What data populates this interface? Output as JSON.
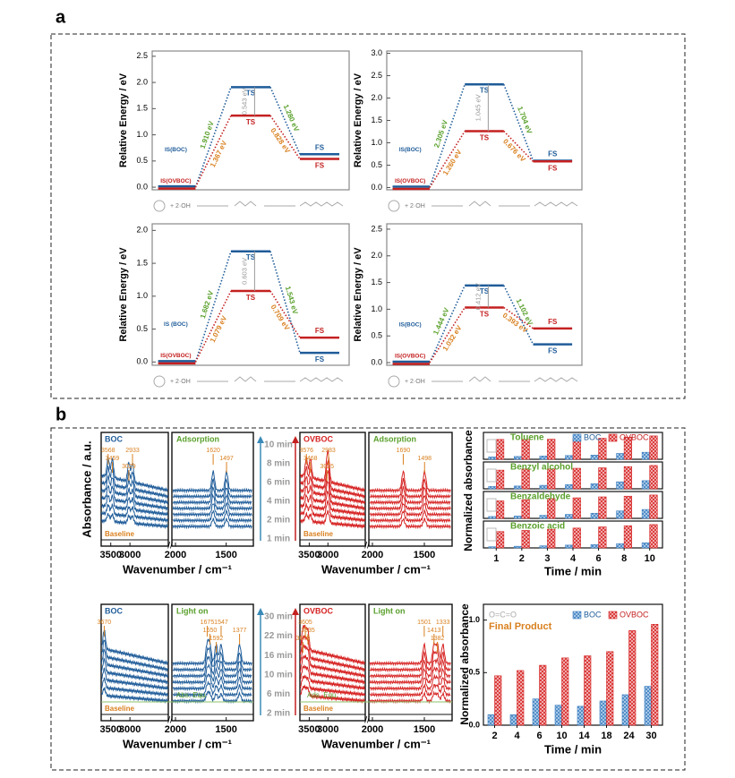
{
  "panel_labels": [
    "a",
    "b"
  ],
  "energy_diagrams": [
    {
      "ylabel": "Relative Energy / eV",
      "ylim": [
        -0.05,
        2.6
      ],
      "yticks": [
        {
          "value": 0,
          "label": "0.0"
        },
        0.5,
        {
          "value": 1,
          "label": "1.0"
        },
        1.5,
        {
          "value": 2,
          "label": "2.0"
        },
        2.5
      ],
      "levels": {
        "is": 0,
        "ts_boc": 1.91,
        "fs_boc": 0.63,
        "ts_ovboc": 1.367,
        "fs_ovboc": 0.539
      },
      "is_boc_label": "IS(BOC)",
      "is_ovboc_label": "IS(OVBOC)",
      "ts_label": "TS",
      "fs_label": "FS",
      "boc_up": "1.910 eV",
      "boc_down": "1.280 eV",
      "ovboc_up": "1.367 eV",
      "ovboc_down": "0.828 eV",
      "diff": "0.543 eV",
      "reagent": "+ 2·OH"
    },
    {
      "ylabel": "Relative Energy / eV",
      "ylim": [
        -0.05,
        3.05
      ],
      "yticks": [
        {
          "value": 0,
          "label": "0.0"
        },
        0.5,
        {
          "value": 1,
          "label": "1.0"
        },
        1.5,
        {
          "value": 2,
          "label": "2.0"
        },
        2.5,
        {
          "value": 3,
          "label": "3.0"
        }
      ],
      "levels": {
        "is": 0,
        "ts_boc": 2.305,
        "fs_boc": 0.601,
        "ts_ovboc": 1.26,
        "fs_ovboc": 0.584
      },
      "is_boc_label": "IS(BOC)",
      "is_ovboc_label": "IS(OVBOC)",
      "ts_label": "TS",
      "fs_label": "FS",
      "boc_up": "2.305 eV",
      "boc_down": "1.704 eV",
      "ovboc_up": "1.260 eV",
      "ovboc_down": "0.676 eV",
      "diff": "1.045 eV",
      "reagent": "+ 2·OH"
    },
    {
      "ylabel": "Relative Energy / eV",
      "ylim": [
        -0.05,
        2.1
      ],
      "yticks": [
        {
          "value": 0,
          "label": "0.0"
        },
        0.5,
        {
          "value": 1,
          "label": "1.0"
        },
        1.5,
        {
          "value": 2,
          "label": "2.0"
        }
      ],
      "levels": {
        "is": 0,
        "ts_boc": 1.682,
        "fs_boc": 0.139,
        "ts_ovboc": 1.079,
        "fs_ovboc": 0.37
      },
      "is_boc_label": "IS (BOC)",
      "is_ovboc_label": "IS(OVBOC)",
      "ts_label": "TS",
      "fs_label": "FS",
      "boc_up": "1.682 eV",
      "boc_down": "1.543 eV",
      "ovboc_up": "1.079 eV",
      "ovboc_down": "0.709 eV",
      "diff": "0.603 eV",
      "reagent": "+ 2·OH"
    },
    {
      "ylabel": "Relative Energy / eV",
      "ylim": [
        -0.05,
        2.6
      ],
      "yticks": [
        {
          "value": 0,
          "label": "0.0"
        },
        0.5,
        {
          "value": 1,
          "label": "1.0"
        },
        1.5,
        {
          "value": 2,
          "label": "2.0"
        },
        2.5
      ],
      "levels": {
        "is": 0,
        "ts_boc": 1.444,
        "fs_boc": 0.342,
        "ts_ovboc": 1.032,
        "fs_ovboc": 0.639
      },
      "is_boc_label": "IS(BOC)",
      "is_ovboc_label": "IS(OVBOC)",
      "ts_label": "TS",
      "fs_label": "FS",
      "boc_up": "1.444 eV",
      "boc_down": "1.102 eV",
      "ovboc_up": "1.032 eV",
      "ovboc_down": "0.393 eV",
      "diff": "0.412 eV",
      "reagent": "+ 2·OH"
    }
  ],
  "spectra_axes": {
    "ylabel": "Absorbance / a.u.",
    "xlabel": "Wavenumber / cm⁻¹",
    "xlim_left": [
      3750,
      2000
    ],
    "xlim_right": [
      2000,
      1250
    ],
    "xticks": [
      3500,
      3000,
      2000,
      1500
    ],
    "baseline": "Baseline"
  },
  "times_adsorption": [
    "10 min",
    "8 min",
    "6 min",
    "4 min",
    "2 min",
    "1 min"
  ],
  "times_light": [
    "30 min",
    "22 min",
    "16 min",
    "10 min",
    "6 min",
    "2 min"
  ],
  "spectra": [
    {
      "sample": "BOC",
      "mode": "Adsorption",
      "color": "#1f5c99",
      "peaks_left": [
        3568,
        3459,
        3029,
        2933
      ],
      "peaks_right": [
        1620,
        1497
      ]
    },
    {
      "sample": "OVBOC",
      "mode": "Adsorption",
      "color": "#d62222",
      "peaks_left": [
        3576,
        3468,
        3025,
        2983
      ],
      "peaks_right": [
        1690,
        1498
      ]
    },
    {
      "sample": "BOC",
      "mode": "Light on",
      "color": "#1f5c99",
      "equ": "Abs. Equ.",
      "peaks_left": [
        3670
      ],
      "peaks_right": [
        1675,
        1650,
        1592,
        1547,
        1377
      ]
    },
    {
      "sample": "OVBOC",
      "mode": "Light on",
      "color": "#d62222",
      "equ": "Ads. Equ.",
      "peaks_left": [
        3605,
        3535,
        3670
      ],
      "peaks_right": [
        1501,
        1413,
        1382,
        1333
      ]
    }
  ],
  "bar_top": {
    "type": "bar",
    "ylabel": "Normalized absorbance",
    "xlabel": "Time / min",
    "ylim": [
      0,
      1.15
    ],
    "categories": [
      "1",
      "2",
      "3",
      "4",
      "6",
      "8",
      "10"
    ],
    "subplots": [
      {
        "title": "Toluene",
        "series": [
          {
            "name": "BOC",
            "color": "#3d7fc0",
            "values": [
              0.1,
              0.12,
              0.14,
              0.16,
              0.18,
              0.25,
              0.3
            ]
          },
          {
            "name": "OVBOC",
            "color": "#d62222",
            "values": [
              0.85,
              0.85,
              0.86,
              0.9,
              0.9,
              0.95,
              1.0
            ]
          }
        ]
      },
      {
        "title": "Benzyl alcohol",
        "series": [
          {
            "color": "#3d7fc0",
            "values": [
              0.1,
              0.12,
              0.15,
              0.18,
              0.22,
              0.3,
              0.35
            ]
          },
          {
            "color": "#d62222",
            "values": [
              0.8,
              0.85,
              0.85,
              0.88,
              0.9,
              0.95,
              1.0
            ]
          }
        ]
      },
      {
        "title": "Benzaldehyde",
        "series": [
          {
            "color": "#3d7fc0",
            "values": [
              0.08,
              0.1,
              0.13,
              0.17,
              0.22,
              0.32,
              0.38
            ]
          },
          {
            "color": "#d62222",
            "values": [
              0.75,
              0.8,
              0.85,
              0.88,
              0.92,
              0.95,
              1.0
            ]
          }
        ]
      },
      {
        "title": "Benzoic acid",
        "series": [
          {
            "color": "#3d7fc0",
            "values": [
              0.05,
              0.07,
              0.09,
              0.12,
              0.14,
              0.18,
              0.22
            ]
          },
          {
            "color": "#d62222",
            "values": [
              0.7,
              0.75,
              0.8,
              0.85,
              0.9,
              0.95,
              1.0
            ]
          }
        ]
      }
    ]
  },
  "bar_bottom": {
    "type": "bar",
    "title": "Final Product",
    "molecule": "O=C=O",
    "ylabel": "Normalized absorbance",
    "xlabel": "Time / min",
    "ylim": [
      0,
      1.15
    ],
    "yticks": [
      {
        "value": 0,
        "label": "0.0"
      },
      0.5,
      {
        "value": 1,
        "label": "1.0"
      }
    ],
    "categories": [
      "2",
      "4",
      "6",
      "10",
      "14",
      "18",
      "24",
      "30"
    ],
    "series": [
      {
        "name": "BOC",
        "color": "#3d7fc0",
        "values": [
          0.1,
          0.1,
          0.25,
          0.19,
          0.18,
          0.23,
          0.29,
          0.37
        ]
      },
      {
        "name": "OVBOC",
        "color": "#d62222",
        "values": [
          0.47,
          0.52,
          0.57,
          0.64,
          0.66,
          0.7,
          0.9,
          0.96
        ]
      }
    ]
  }
}
